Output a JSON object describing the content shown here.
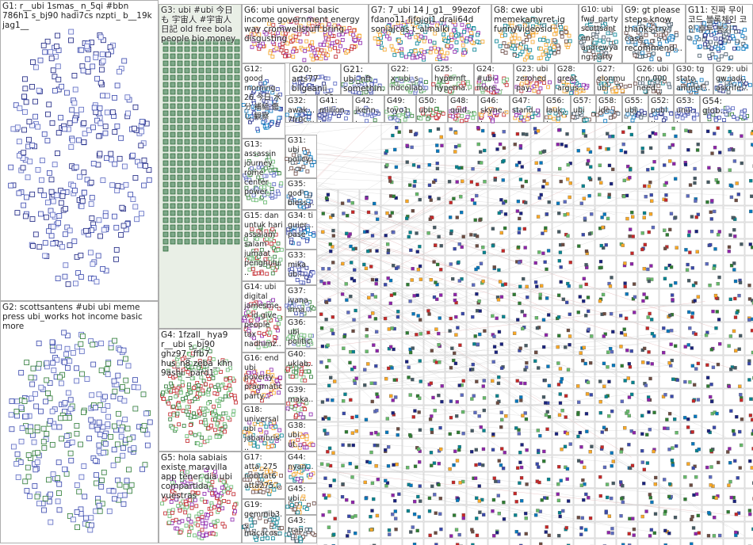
{
  "groups": [
    {
      "label": "G1: r__ubi 1smas_ n_5qi #bbn 786h1 s_bj90 hadi7cs nzpti_ b__19k jag1__"
    },
    {
      "label": "G2: scottsantens #ubi ubi meme press ubi_works hot income basic more"
    },
    {
      "label": "G3: ubi #ubi 今日も 宇宙人 #宇宙人日記 old free bola people bio money"
    },
    {
      "label": "G4: 1fzall_ hya9 r__ubi s_bj90 ghz97_ ffb7 hus_n8 zeba_khn 9ashi _pard1"
    },
    {
      "label": "G5: hola sabiais existe maravilla app tener dia ubi compartida vuestras"
    },
    {
      "label": "G6: ubi universal basic income government energy way cromwellstuff bring disgusting"
    },
    {
      "label": "G7: 7_ubi 14 J_g1__99ezof fdano11 fjfgjgj1 drali64d soniajcas t_almalki"
    },
    {
      "label": "G8: cwe ubi memekamvret ig funnyvideosid"
    },
    {
      "label": "G10: ubi fwd_party scottsantens andrewyang party people..."
    },
    {
      "label": "G9: gt please steps know thanks try case recommend..."
    },
    {
      "label": "G11: 진짜 무이 코드 블록체인 코인 후투 봉기"
    },
    {
      "label": "G12: good morning 26 今日 水分 補給 傷 し 観察"
    },
    {
      "label": "G20: arts77 bilgeanii_ carla_t_92"
    },
    {
      "label": "G21: ubi_nft somethin..."
    },
    {
      "label": "G22: x_ubi_s hdcollab..."
    },
    {
      "label": "G25: hypernft hyperna..."
    },
    {
      "label": "G24: #ubi more..."
    },
    {
      "label": "G23: ubi zerohed pay give..."
    },
    {
      "label": "G28: great argus..."
    },
    {
      "label": "G27: elonmu ubi"
    },
    {
      "label": "G26: ubi cnn 000 need..."
    },
    {
      "label": "G30: tg stato ammet..."
    },
    {
      "label": "G29: ubi gw jadi askrife..."
    },
    {
      "label": "G32: awak... 7fr0c..."
    },
    {
      "label": "G41: million..."
    },
    {
      "label": "G42: jkenn..."
    },
    {
      "label": "G49: toyo1"
    },
    {
      "label": "G50: ubi"
    },
    {
      "label": "G48: quid..."
    },
    {
      "label": "G46: skyne..."
    },
    {
      "label": "G47: stand..."
    },
    {
      "label": "G56: lauk..."
    },
    {
      "label": "G57: ubi"
    },
    {
      "label": "G58: ide..."
    },
    {
      "label": "G55: ubi"
    },
    {
      "label": "G52: publ..."
    },
    {
      "label": "G53: unu..."
    },
    {
      "label": "G54: glob..."
    },
    {
      "label": "G13: assassin journey rome center power..."
    },
    {
      "label": "G15: dan untuk hari assalam salam jumaat penghulu..."
    },
    {
      "label": "G14: ubi digital jamesme... id give people tax nadhimz..."
    },
    {
      "label": "G16: end ubi poverty pragmatic party..."
    },
    {
      "label": "G18: universal ubi jabaribris..."
    },
    {
      "label": "G17: atta_275 noorfat6 atta275..."
    },
    {
      "label": "G19: gemmib3... macacos..."
    },
    {
      "label": "G31: ubi policy..."
    },
    {
      "label": "G35: god bless..."
    },
    {
      "label": "G34: ti guier... pase"
    },
    {
      "label": "G33: mika ub..."
    },
    {
      "label": "G37: ivana irma..."
    },
    {
      "label": "G36: ubi politic..."
    },
    {
      "label": "G40: uklab..."
    },
    {
      "label": "G39: maka..."
    },
    {
      "label": "G38: ubi ut..."
    },
    {
      "label": "G44: nyan..."
    },
    {
      "label": "G45: ubi..."
    },
    {
      "label": "G43: trap..."
    }
  ]
}
